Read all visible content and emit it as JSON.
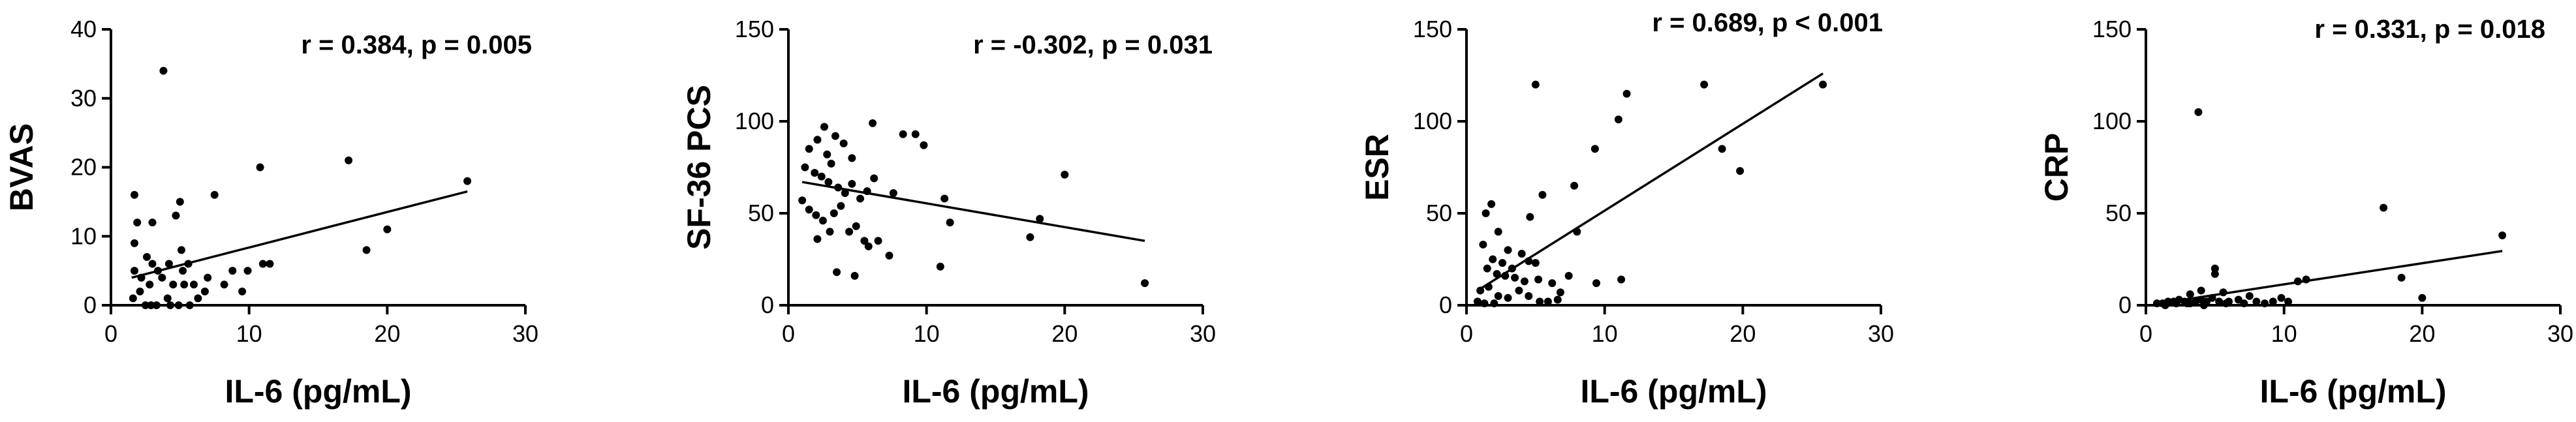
{
  "chart_data": [
    {
      "type": "scatter",
      "ylabel": "BVAS",
      "xlabel": "IL-6 (pg/mL)",
      "annotation": "r = 0.384, p = 0.005",
      "xlim": [
        0,
        30
      ],
      "ylim": [
        0,
        40
      ],
      "xticks": [
        "0",
        "10",
        "20",
        "30"
      ],
      "yticks": [
        "0",
        "10",
        "20",
        "30",
        "40"
      ],
      "fit_line": [
        [
          1.5,
          4.0
        ],
        [
          25.8,
          16.5
        ]
      ],
      "points": [
        [
          3.8,
          34
        ],
        [
          17.2,
          21
        ],
        [
          10.8,
          20
        ],
        [
          25.8,
          18
        ],
        [
          1.7,
          16
        ],
        [
          7.5,
          16
        ],
        [
          5.0,
          15
        ],
        [
          4.7,
          13
        ],
        [
          1.9,
          12
        ],
        [
          3.0,
          12
        ],
        [
          11.0,
          6
        ],
        [
          11.5,
          6
        ],
        [
          18.5,
          8
        ],
        [
          20.0,
          11
        ],
        [
          1.7,
          9
        ],
        [
          5.1,
          8
        ],
        [
          1.7,
          5
        ],
        [
          2.2,
          4
        ],
        [
          2.6,
          7
        ],
        [
          2.8,
          3
        ],
        [
          3.0,
          6
        ],
        [
          3.4,
          5
        ],
        [
          3.7,
          4
        ],
        [
          4.2,
          6
        ],
        [
          4.5,
          3
        ],
        [
          5.2,
          5
        ],
        [
          5.6,
          6
        ],
        [
          6.0,
          3
        ],
        [
          6.3,
          1
        ],
        [
          7.0,
          4
        ],
        [
          8.2,
          3
        ],
        [
          8.8,
          5
        ],
        [
          9.5,
          2
        ],
        [
          9.9,
          5
        ],
        [
          1.6,
          1
        ],
        [
          2.1,
          2
        ],
        [
          2.5,
          0
        ],
        [
          2.9,
          0
        ],
        [
          3.3,
          0
        ],
        [
          4.1,
          1
        ],
        [
          4.3,
          0
        ],
        [
          5.3,
          3
        ],
        [
          5.7,
          0
        ],
        [
          6.8,
          2
        ],
        [
          4.9,
          0
        ]
      ]
    },
    {
      "type": "scatter",
      "ylabel": "SF-36 PCS",
      "xlabel": "IL-6 (pg/mL)",
      "annotation": "r = -0.302, p = 0.031",
      "xlim": [
        0,
        30
      ],
      "ylim": [
        0,
        150
      ],
      "xticks": [
        "0",
        "10",
        "20",
        "30"
      ],
      "yticks": [
        "0",
        "50",
        "100",
        "150"
      ],
      "fit_line": [
        [
          1.0,
          67
        ],
        [
          25.8,
          35
        ]
      ],
      "points": [
        [
          2.6,
          97
        ],
        [
          6.1,
          99
        ],
        [
          8.3,
          93
        ],
        [
          9.2,
          93
        ],
        [
          9.8,
          87
        ],
        [
          2.1,
          90
        ],
        [
          3.4,
          92
        ],
        [
          4.0,
          88
        ],
        [
          1.5,
          85
        ],
        [
          2.8,
          82
        ],
        [
          3.1,
          77
        ],
        [
          4.6,
          80
        ],
        [
          1.2,
          75
        ],
        [
          1.9,
          72
        ],
        [
          2.4,
          70
        ],
        [
          2.9,
          67
        ],
        [
          3.6,
          64
        ],
        [
          4.1,
          61
        ],
        [
          4.6,
          66
        ],
        [
          5.2,
          58
        ],
        [
          5.7,
          62
        ],
        [
          6.2,
          69
        ],
        [
          7.6,
          61
        ],
        [
          11.3,
          58
        ],
        [
          1.0,
          57
        ],
        [
          1.5,
          52
        ],
        [
          2.0,
          49
        ],
        [
          2.5,
          46
        ],
        [
          3.3,
          50
        ],
        [
          3.8,
          54
        ],
        [
          4.4,
          40
        ],
        [
          4.9,
          43
        ],
        [
          5.5,
          35
        ],
        [
          6.5,
          35
        ],
        [
          11.7,
          45
        ],
        [
          17.5,
          37
        ],
        [
          18.2,
          47
        ],
        [
          20.0,
          71
        ],
        [
          2.1,
          36
        ],
        [
          3.0,
          40
        ],
        [
          3.5,
          18
        ],
        [
          4.8,
          16
        ],
        [
          5.8,
          32
        ],
        [
          7.3,
          27
        ],
        [
          11.0,
          21
        ],
        [
          25.8,
          12
        ]
      ]
    },
    {
      "type": "scatter",
      "ylabel": "ESR",
      "xlabel": "IL-6 (pg/mL)",
      "annotation": "r = 0.689, p < 0.001",
      "xlim": [
        0,
        30
      ],
      "ylim": [
        0,
        150
      ],
      "xticks": [
        "0",
        "10",
        "20",
        "30"
      ],
      "yticks": [
        "0",
        "50",
        "100",
        "150"
      ],
      "fit_line": [
        [
          0.8,
          8
        ],
        [
          25.8,
          126
        ]
      ],
      "points": [
        [
          5.0,
          120
        ],
        [
          17.2,
          120
        ],
        [
          25.8,
          120
        ],
        [
          11.6,
          115
        ],
        [
          11.0,
          101
        ],
        [
          9.3,
          85
        ],
        [
          18.5,
          85
        ],
        [
          19.8,
          73
        ],
        [
          7.8,
          65
        ],
        [
          5.5,
          60
        ],
        [
          1.8,
          55
        ],
        [
          1.4,
          50
        ],
        [
          4.6,
          48
        ],
        [
          8.0,
          40
        ],
        [
          2.3,
          40
        ],
        [
          1.2,
          33
        ],
        [
          3.0,
          30
        ],
        [
          4.0,
          28
        ],
        [
          1.9,
          25
        ],
        [
          2.6,
          23
        ],
        [
          3.3,
          20
        ],
        [
          4.5,
          24
        ],
        [
          5.0,
          23
        ],
        [
          1.5,
          20
        ],
        [
          2.2,
          17
        ],
        [
          2.8,
          16
        ],
        [
          3.5,
          15
        ],
        [
          4.2,
          13
        ],
        [
          5.2,
          14
        ],
        [
          6.2,
          12
        ],
        [
          6.8,
          7
        ],
        [
          7.4,
          16
        ],
        [
          9.4,
          12
        ],
        [
          11.2,
          14
        ],
        [
          1.0,
          8
        ],
        [
          1.6,
          10
        ],
        [
          2.3,
          5
        ],
        [
          3.0,
          4
        ],
        [
          3.8,
          8
        ],
        [
          4.5,
          5
        ],
        [
          5.3,
          2
        ],
        [
          5.9,
          2
        ],
        [
          6.6,
          3
        ],
        [
          0.8,
          2
        ],
        [
          1.3,
          1
        ],
        [
          2.0,
          1
        ]
      ]
    },
    {
      "type": "scatter",
      "ylabel": "CRP",
      "xlabel": "IL-6 (pg/mL)",
      "annotation": "r = 0.331, p = 0.018",
      "xlim": [
        0,
        30
      ],
      "ylim": [
        0,
        150
      ],
      "xticks": [
        "0",
        "10",
        "20",
        "30"
      ],
      "yticks": [
        "0",
        "50",
        "100",
        "150"
      ],
      "fit_line": [
        [
          0.8,
          0.8
        ],
        [
          25.8,
          29.5
        ]
      ],
      "points": [
        [
          3.8,
          105
        ],
        [
          17.2,
          53
        ],
        [
          25.8,
          38
        ],
        [
          5.0,
          20
        ],
        [
          5.0,
          17
        ],
        [
          11.0,
          13
        ],
        [
          11.6,
          14
        ],
        [
          18.5,
          15
        ],
        [
          4.0,
          8
        ],
        [
          3.2,
          6
        ],
        [
          5.6,
          7
        ],
        [
          7.5,
          5
        ],
        [
          9.8,
          4
        ],
        [
          20.0,
          4
        ],
        [
          0.8,
          1
        ],
        [
          1.2,
          1
        ],
        [
          1.6,
          2
        ],
        [
          2.0,
          2
        ],
        [
          2.4,
          3
        ],
        [
          2.8,
          2
        ],
        [
          3.2,
          1
        ],
        [
          3.6,
          2
        ],
        [
          4.0,
          3
        ],
        [
          4.4,
          2
        ],
        [
          4.8,
          4
        ],
        [
          5.3,
          2
        ],
        [
          6.0,
          2
        ],
        [
          6.7,
          3
        ],
        [
          7.1,
          1
        ],
        [
          8.0,
          2
        ],
        [
          8.6,
          1
        ],
        [
          9.2,
          2
        ],
        [
          10.3,
          2
        ],
        [
          1.4,
          0
        ],
        [
          2.2,
          1
        ],
        [
          3.0,
          1
        ],
        [
          4.2,
          0
        ],
        [
          5.8,
          1
        ]
      ]
    }
  ]
}
